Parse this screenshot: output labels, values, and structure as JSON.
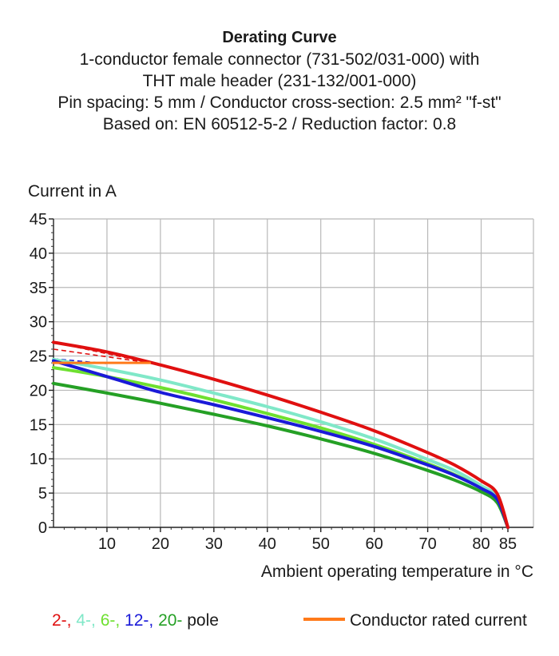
{
  "header": {
    "title": "Derating Curve",
    "line1": "1-conductor female connector (731-502/031-000) with",
    "line2": "THT male header (231-132/001-000)",
    "line3": "Pin spacing: 5 mm / Conductor cross-section: 2.5 mm² \"f-st\"",
    "line4": "Based on: EN 60512-5-2 / Reduction factor: 0.8"
  },
  "chart_data": {
    "type": "line",
    "ylabel": "Current in A",
    "xlabel": "Ambient operating temperature in °C",
    "xlim": [
      0,
      85
    ],
    "ylim": [
      0,
      45
    ],
    "x_ticks": [
      10,
      20,
      30,
      40,
      50,
      60,
      70,
      80,
      85
    ],
    "y_ticks": [
      0,
      5,
      10,
      15,
      20,
      25,
      30,
      35,
      40,
      45
    ],
    "x_grid": [
      10,
      20,
      30,
      40,
      50,
      60,
      70,
      80
    ],
    "y_grid": [
      5,
      10,
      15,
      20,
      25,
      30,
      35,
      40,
      45
    ],
    "grid": true,
    "series": [
      {
        "name": "2-",
        "color": "#e01010",
        "width": 4,
        "x": [
          0,
          10,
          20,
          30,
          40,
          50,
          60,
          70,
          75,
          80,
          83,
          85
        ],
        "y": [
          27.0,
          25.6,
          23.7,
          21.6,
          19.3,
          16.8,
          14.1,
          10.9,
          9.1,
          6.8,
          4.9,
          0
        ]
      },
      {
        "name": "4-",
        "color": "#80e8c8",
        "width": 4,
        "x": [
          0,
          10,
          20,
          30,
          40,
          50,
          60,
          70,
          75,
          80,
          83,
          85
        ],
        "y": [
          24.5,
          23.1,
          21.5,
          19.6,
          17.6,
          15.4,
          12.9,
          9.9,
          8.3,
          6.1,
          4.4,
          0
        ]
      },
      {
        "name": "6-",
        "color": "#6ee030",
        "width": 4,
        "x": [
          0,
          10,
          20,
          30,
          40,
          50,
          60,
          70,
          75,
          80,
          83,
          85
        ],
        "y": [
          23.3,
          22.0,
          20.4,
          18.6,
          16.6,
          14.5,
          12.1,
          9.3,
          7.7,
          5.8,
          4.1,
          0
        ]
      },
      {
        "name": "12-",
        "color": "#1a1ad8",
        "width": 4,
        "x": [
          0,
          10,
          20,
          30,
          40,
          50,
          60,
          70,
          75,
          80,
          83,
          85
        ],
        "y": [
          24.3,
          22.0,
          19.7,
          17.9,
          16.0,
          14.0,
          11.8,
          9.1,
          7.6,
          5.7,
          4.1,
          0
        ]
      },
      {
        "name": "20-",
        "color": "#25a025",
        "width": 4,
        "x": [
          0,
          10,
          20,
          30,
          40,
          50,
          60,
          70,
          75,
          80,
          83,
          85
        ],
        "y": [
          21.0,
          19.6,
          18.1,
          16.5,
          14.8,
          12.9,
          10.8,
          8.3,
          6.9,
          5.2,
          3.6,
          0
        ]
      },
      {
        "name": "Conductor rated current",
        "color": "#ff7a1a",
        "width": 3,
        "x": [
          0,
          18
        ],
        "y": [
          24,
          24
        ]
      }
    ],
    "extensions": [
      {
        "color": "#e01010",
        "x": [
          0,
          18
        ],
        "y": [
          27.0,
          24.0
        ]
      },
      {
        "color": "#e01010",
        "x": [
          0,
          18
        ],
        "y": [
          26.0,
          24.0
        ]
      },
      {
        "color": "#1a1ad8",
        "x": [
          0,
          10
        ],
        "y": [
          24.6,
          23.9
        ]
      }
    ]
  },
  "legend": {
    "poles": [
      {
        "label": "2-,",
        "color": "#e01010"
      },
      {
        "label": "4-,",
        "color": "#80e8c8"
      },
      {
        "label": "6-,",
        "color": "#6ee030"
      },
      {
        "label": "12-,",
        "color": "#1a1ad8"
      },
      {
        "label": "20-",
        "color": "#25a025"
      }
    ],
    "pole_suffix": "pole",
    "rated_label": "Conductor rated current",
    "rated_color": "#ff7a1a"
  }
}
